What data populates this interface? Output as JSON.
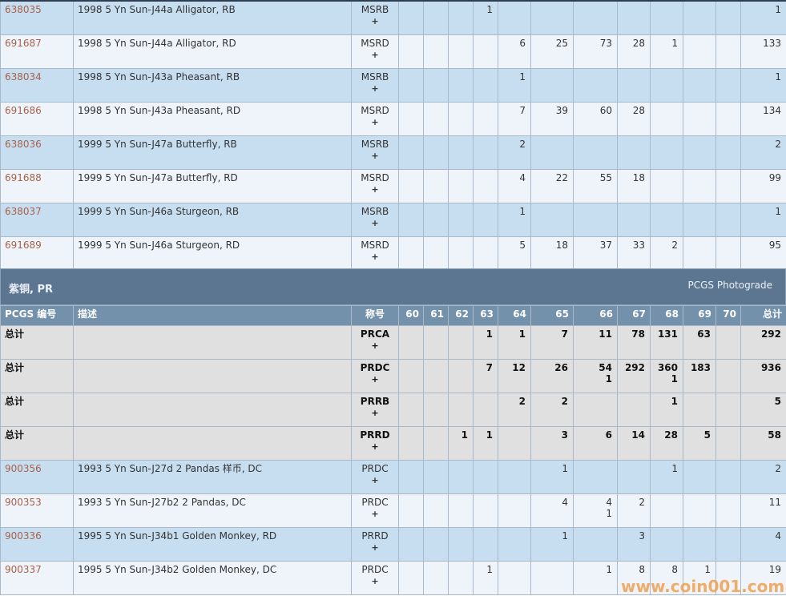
{
  "ms_rows": [
    {
      "id": "638035",
      "desc": "1998 5 Yn Sun-J44a Alligator, RB",
      "des": "MSRB",
      "grades": [
        "",
        "",
        "",
        "1",
        "",
        "",
        "",
        "",
        "",
        "",
        ""
      ],
      "total": "1"
    },
    {
      "id": "691687",
      "desc": "1998 5 Yn Sun-J44a Alligator, RD",
      "des": "MSRD",
      "grades": [
        "",
        "",
        "",
        "",
        "6",
        "25",
        "73",
        "28",
        "1",
        "",
        ""
      ],
      "total": "133"
    },
    {
      "id": "638034",
      "desc": "1998 5 Yn Sun-J43a Pheasant, RB",
      "des": "MSRB",
      "grades": [
        "",
        "",
        "",
        "",
        "1",
        "",
        "",
        "",
        "",
        "",
        ""
      ],
      "total": "1"
    },
    {
      "id": "691686",
      "desc": "1998 5 Yn Sun-J43a Pheasant, RD",
      "des": "MSRD",
      "grades": [
        "",
        "",
        "",
        "",
        "7",
        "39",
        "60",
        "28",
        "",
        "",
        ""
      ],
      "total": "134"
    },
    {
      "id": "638036",
      "desc": "1999 5 Yn Sun-J47a Butterfly, RB",
      "des": "MSRB",
      "grades": [
        "",
        "",
        "",
        "",
        "2",
        "",
        "",
        "",
        "",
        "",
        ""
      ],
      "total": "2"
    },
    {
      "id": "691688",
      "desc": "1999 5 Yn Sun-J47a Butterfly, RD",
      "des": "MSRD",
      "grades": [
        "",
        "",
        "",
        "",
        "4",
        "22",
        "55",
        "18",
        "",
        "",
        ""
      ],
      "total": "99"
    },
    {
      "id": "638037",
      "desc": "1999 5 Yn Sun-J46a Sturgeon, RB",
      "des": "MSRB",
      "grades": [
        "",
        "",
        "",
        "",
        "1",
        "",
        "",
        "",
        "",
        "",
        ""
      ],
      "total": "1"
    },
    {
      "id": "691689",
      "desc": "1999 5 Yn Sun-J46a Sturgeon, RD",
      "des": "MSRD",
      "grades": [
        "",
        "",
        "",
        "",
        "5",
        "18",
        "37",
        "33",
        "2",
        "",
        ""
      ],
      "total": "95"
    }
  ],
  "section": {
    "title": "紫铜, PR",
    "link": "PCGS Photograde"
  },
  "headers": {
    "id": "PCGS 编号",
    "desc": "描述",
    "des": "称号",
    "grades": [
      "60",
      "61",
      "62",
      "63",
      "64",
      "65",
      "66",
      "67",
      "68",
      "69",
      "70"
    ],
    "total": "总计"
  },
  "plus_label": "+",
  "pr_rows": [
    {
      "id": "总计",
      "total_row": true,
      "desc": "",
      "des": "PRCA",
      "grades": [
        "",
        "",
        "",
        "1",
        "1",
        "7",
        "11",
        "78",
        "131",
        "63",
        ""
      ],
      "plus": [
        "",
        "",
        "",
        "",
        "",
        "",
        "",
        "",
        "",
        "",
        ""
      ],
      "total": "292"
    },
    {
      "id": "总计",
      "total_row": true,
      "desc": "",
      "des": "PRDC",
      "grades": [
        "",
        "",
        "",
        "7",
        "12",
        "26",
        "54",
        "292",
        "360",
        "183",
        ""
      ],
      "plus": [
        "",
        "",
        "",
        "",
        "",
        "",
        "1",
        "",
        "1",
        "",
        ""
      ],
      "total": "936"
    },
    {
      "id": "总计",
      "total_row": true,
      "desc": "",
      "des": "PRRB",
      "grades": [
        "",
        "",
        "",
        "",
        "2",
        "2",
        "",
        "",
        "1",
        "",
        ""
      ],
      "plus": [
        "",
        "",
        "",
        "",
        "",
        "",
        "",
        "",
        "",
        "",
        ""
      ],
      "total": "5"
    },
    {
      "id": "总计",
      "total_row": true,
      "desc": "",
      "des": "PRRD",
      "grades": [
        "",
        "",
        "1",
        "1",
        "",
        "3",
        "6",
        "14",
        "28",
        "5",
        ""
      ],
      "plus": [
        "",
        "",
        "",
        "",
        "",
        "",
        "",
        "",
        "",
        "",
        ""
      ],
      "total": "58"
    },
    {
      "id": "900356",
      "desc": "1993 5 Yn Sun-J27d 2 Pandas 样币, DC",
      "des": "PRDC",
      "grades": [
        "",
        "",
        "",
        "",
        "",
        "1",
        "",
        "",
        "1",
        "",
        ""
      ],
      "plus": [
        "",
        "",
        "",
        "",
        "",
        "",
        "",
        "",
        "",
        "",
        ""
      ],
      "total": "2"
    },
    {
      "id": "900353",
      "desc": "1993 5 Yn Sun-J27b2 2 Pandas, DC",
      "des": "PRDC",
      "grades": [
        "",
        "",
        "",
        "",
        "",
        "4",
        "4",
        "2",
        "",
        "",
        ""
      ],
      "plus": [
        "",
        "",
        "",
        "",
        "",
        "",
        "1",
        "",
        "",
        "",
        ""
      ],
      "total": "11"
    },
    {
      "id": "900336",
      "desc": "1995 5 Yn Sun-J34b1 Golden Monkey, RD",
      "des": "PRRD",
      "grades": [
        "",
        "",
        "",
        "",
        "",
        "1",
        "",
        "3",
        "",
        "",
        ""
      ],
      "plus": [
        "",
        "",
        "",
        "",
        "",
        "",
        "",
        "",
        "",
        "",
        ""
      ],
      "total": "4"
    },
    {
      "id": "900337",
      "desc": "1995 5 Yn Sun-J34b2 Golden Monkey, DC",
      "des": "PRDC",
      "grades": [
        "",
        "",
        "",
        "1",
        "",
        "",
        "1",
        "8",
        "8",
        "1",
        ""
      ],
      "plus": [
        "",
        "",
        "",
        "",
        "",
        "",
        "",
        "",
        "",
        "",
        ""
      ],
      "total": "19"
    }
  ],
  "watermark": "www.coin001.com"
}
